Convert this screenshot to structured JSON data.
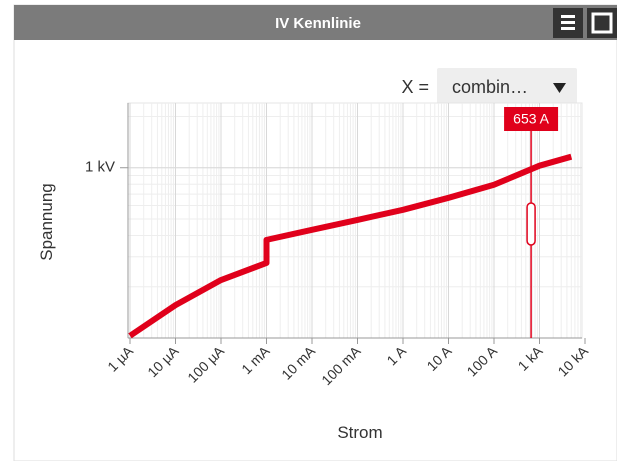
{
  "panel": {
    "title": "IV Kennlinie",
    "selector_label": "X =",
    "selector_value": "combin…"
  },
  "chart_data": {
    "type": "line",
    "x_label": "Strom",
    "y_label": "Spannung",
    "x": [
      1e-06,
      1e-05,
      0.0001,
      0.001,
      0.001,
      0.01,
      0.1,
      1,
      10,
      100,
      1000,
      5000
    ],
    "values": [
      103,
      156,
      219,
      276,
      377,
      432,
      494,
      566,
      666,
      794,
      1028,
      1161
    ],
    "color": "#e0001b",
    "x_log": true,
    "y_log": true,
    "grid": true,
    "xlim": [
      1e-06,
      10000.0
    ],
    "ylim": [
      100,
      2400
    ],
    "xticks": [
      {
        "value": 1e-06,
        "label": "1 µA"
      },
      {
        "value": 1e-05,
        "label": "10 µA"
      },
      {
        "value": 0.0001,
        "label": "100 µA"
      },
      {
        "value": 0.001,
        "label": "1 mA"
      },
      {
        "value": 0.01,
        "label": "10 mA"
      },
      {
        "value": 0.1,
        "label": "100 mA"
      },
      {
        "value": 1,
        "label": "1 A"
      },
      {
        "value": 10,
        "label": "10 A"
      },
      {
        "value": 100,
        "label": "100 A"
      },
      {
        "value": 1000,
        "label": "1 kA"
      },
      {
        "value": 10000,
        "label": "10 kA"
      }
    ],
    "yticks": [
      {
        "value": 1000,
        "label": "1 kV"
      }
    ],
    "cursor": {
      "value": 653,
      "label": "653 A"
    }
  }
}
